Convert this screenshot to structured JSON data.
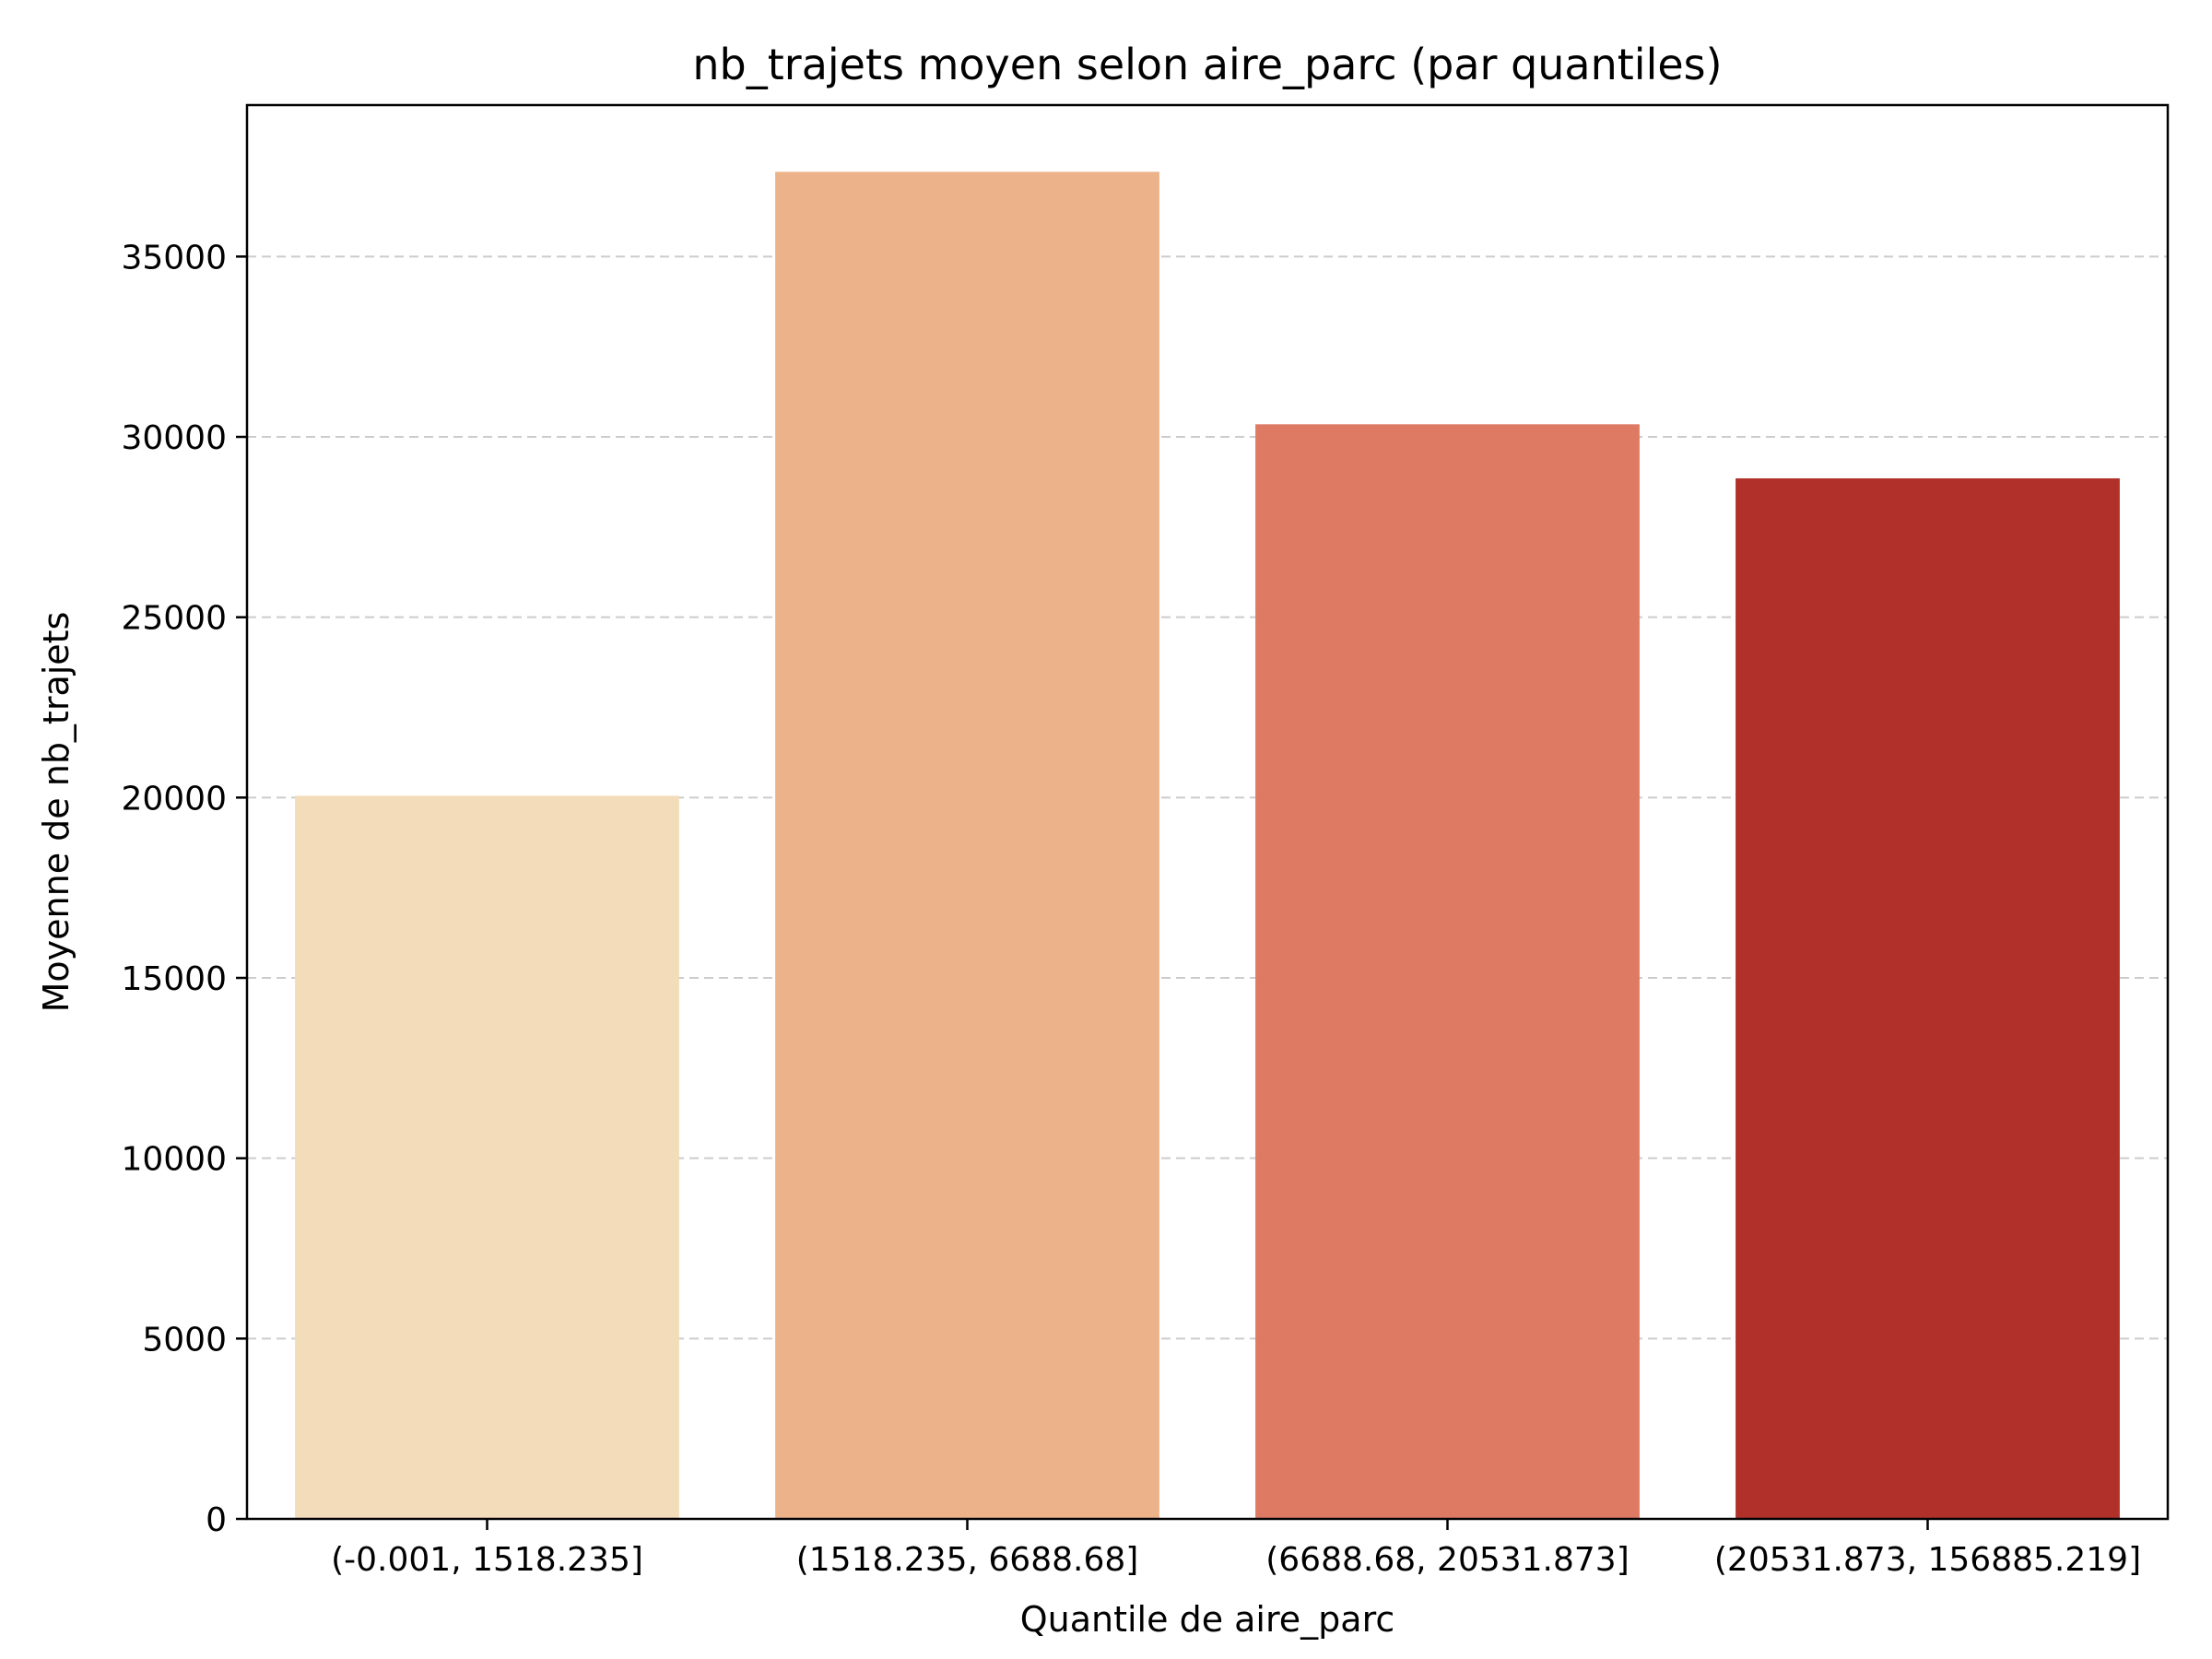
{
  "chart_data": {
    "type": "bar",
    "title": "nb_trajets moyen selon aire_parc (par quantiles)",
    "xlabel": "Quantile de aire_parc",
    "ylabel": "Moyenne de nb_trajets",
    "categories": [
      "(-0.001, 1518.235]",
      "(1518.235, 6688.68]",
      "(6688.68, 20531.873]",
      "(20531.873, 156885.219]"
    ],
    "values": [
      20050,
      37350,
      30350,
      28850
    ],
    "colors": [
      "#f3dcb9",
      "#ecb38b",
      "#de7a63",
      "#b1312a"
    ],
    "ylim": [
      0,
      39200
    ],
    "yticks": [
      0,
      5000,
      10000,
      15000,
      20000,
      25000,
      30000,
      35000
    ],
    "grid": "y-dashed",
    "legend": "none"
  }
}
